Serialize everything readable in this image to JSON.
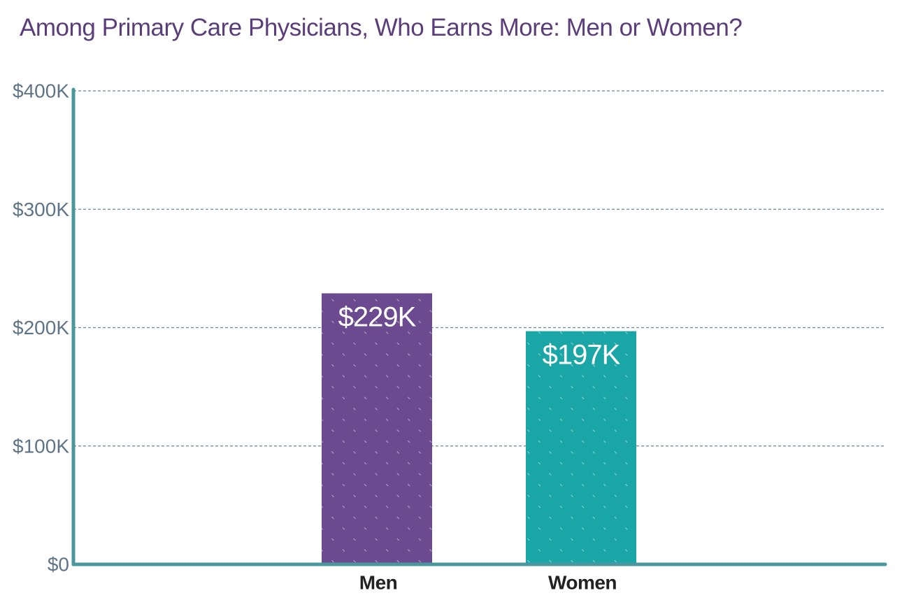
{
  "colors": {
    "title": "#5b3d7a",
    "axis": "#4a979e",
    "grid": "#6a8596",
    "tick_label": "#5e7588",
    "category_label": "#222222",
    "data_label": "#ffffff",
    "bar_men": "#6c4a8f",
    "bar_women": "#1aa6a6"
  },
  "chart_data": {
    "type": "bar",
    "title": "Among Primary Care Physicians, Who Earns More: Men or Women?",
    "xlabel": "",
    "ylabel": "",
    "categories": [
      "Men",
      "Women"
    ],
    "values": [
      229,
      197
    ],
    "value_labels": [
      "$229K",
      "$197K"
    ],
    "bar_colors": [
      "#6c4a8f",
      "#1aa6a6"
    ],
    "ylim": [
      0,
      400
    ],
    "yticks": [
      0,
      100,
      200,
      300,
      400
    ],
    "ytick_labels": [
      "$0",
      "$100K",
      "$200K",
      "$300K",
      "$400K"
    ],
    "grid": true,
    "legend": "none"
  }
}
